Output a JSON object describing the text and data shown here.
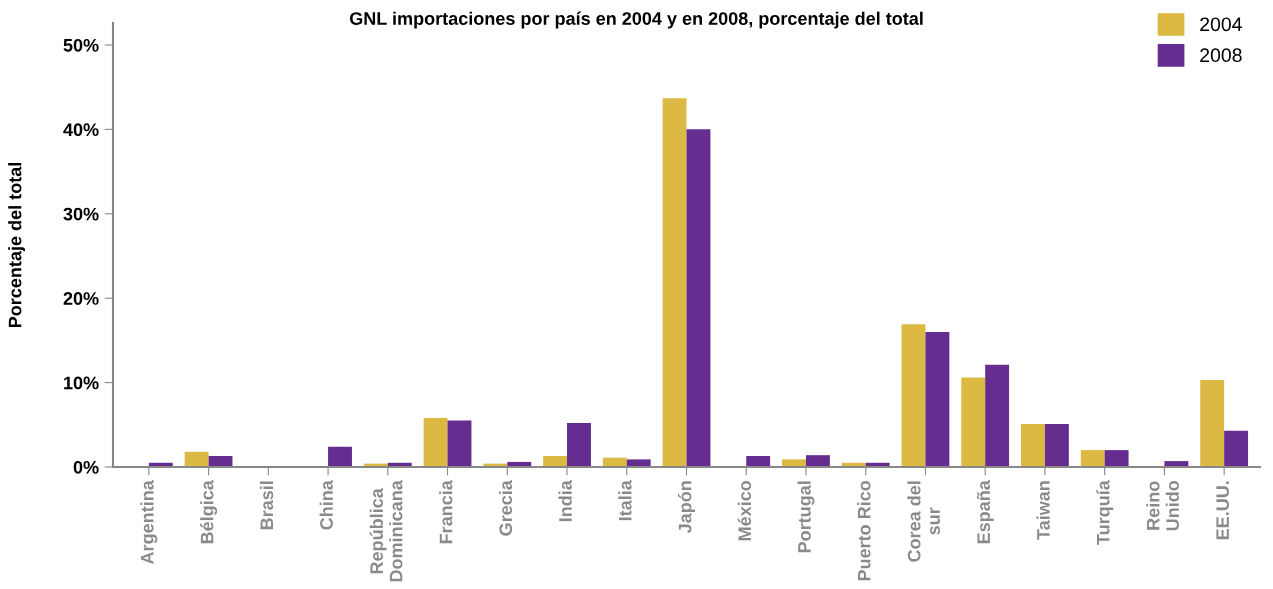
{
  "chart_data": {
    "type": "bar",
    "title": "GNL importaciones por país en 2004 y en 2008, porcentaje del total",
    "ylabel": "Porcentaje del total",
    "categories": [
      "Argentina",
      "Bélgica",
      "Brasil",
      "China",
      "República\nDominicana",
      "Francia",
      "Grecia",
      "India",
      "Italia",
      "Japón",
      "México",
      "Portugal",
      "Puerto Rico",
      "Corea del\nsur",
      "España",
      "Taiwan",
      "Turquía",
      "Reino\nUnido",
      "EE.UU."
    ],
    "series": [
      {
        "name": "2004",
        "color": "#dbb942",
        "values": [
          0,
          1.8,
          0,
          0,
          0.4,
          5.8,
          0.4,
          1.3,
          1.1,
          43.7,
          0,
          0.9,
          0.5,
          16.9,
          10.6,
          5.1,
          2.0,
          0,
          10.3
        ]
      },
      {
        "name": "2008",
        "color": "#652d8f",
        "values": [
          0.5,
          1.3,
          0,
          2.4,
          0.5,
          5.5,
          0.6,
          5.2,
          0.9,
          40.0,
          1.3,
          1.4,
          0.5,
          16.0,
          12.1,
          5.1,
          2.0,
          0.7,
          4.3
        ]
      }
    ],
    "ylim": [
      0,
      52.6
    ],
    "yticks": [
      {
        "value": 0,
        "label": "0%"
      },
      {
        "value": 10,
        "label": "10%"
      },
      {
        "value": 20,
        "label": "20%"
      },
      {
        "value": 30,
        "label": "30%"
      },
      {
        "value": 40,
        "label": "40%"
      },
      {
        "value": 50,
        "label": "50%"
      }
    ],
    "grid": false,
    "legend": "top right"
  }
}
